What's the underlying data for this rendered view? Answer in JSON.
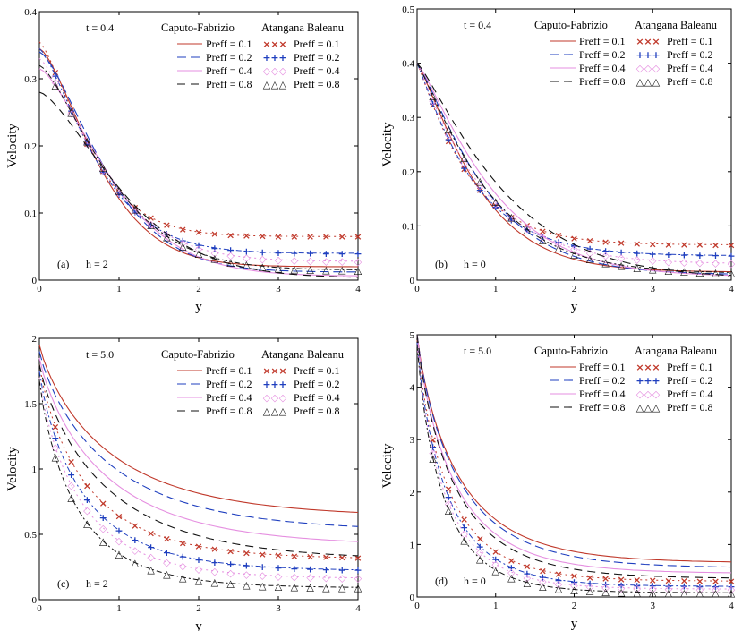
{
  "colors": {
    "p01": "#c0392b",
    "p02": "#1f3fbf",
    "p04": "#e58fe0",
    "p08": "#111111"
  },
  "legend": {
    "cf_header": "Caputo-Fabrizio",
    "ab_header": "Atangana Baleanu",
    "entries": [
      {
        "key": "p01",
        "label": "Preff = 0.1"
      },
      {
        "key": "p02",
        "label": "Preff = 0.2"
      },
      {
        "key": "p04",
        "label": "Preff = 0.4"
      },
      {
        "key": "p08",
        "label": "Preff = 0.8"
      }
    ]
  },
  "chart_data": [
    {
      "type": "line",
      "panel": "(a)",
      "time_label": "t = 0.4",
      "h_label": "h = 2",
      "xlabel": "y",
      "ylabel": "Velocity",
      "xlim": [
        0,
        4
      ],
      "ylim": [
        0,
        0.4
      ],
      "xticks": [
        0,
        1,
        2,
        3,
        4
      ],
      "yticks": [
        0,
        0.1,
        0.2,
        0.3,
        0.4
      ],
      "cf": {
        "y0": [
          0.345,
          0.34,
          0.315,
          0.28
        ],
        "yend": [
          0.02,
          0.012,
          0.006,
          0.003
        ],
        "k": [
          0.9,
          1.0,
          1.1,
          1.25
        ],
        "p": [
          1.45,
          1.45,
          1.45,
          1.45
        ]
      },
      "ab": {
        "y0": [
          0.355,
          0.345,
          0.33,
          0.32
        ],
        "yend": [
          0.065,
          0.04,
          0.028,
          0.015
        ],
        "k": [
          0.75,
          0.85,
          0.95,
          1.05
        ],
        "p": [
          1.35,
          1.35,
          1.35,
          1.4
        ]
      }
    },
    {
      "type": "line",
      "panel": "(b)",
      "time_label": "t = 0.4",
      "h_label": "h = 0",
      "xlabel": "y",
      "ylabel": "Velocity",
      "xlim": [
        0,
        4
      ],
      "ylim": [
        0,
        0.5
      ],
      "xticks": [
        0,
        1,
        2,
        3,
        4
      ],
      "yticks": [
        0,
        0.1,
        0.2,
        0.3,
        0.4,
        0.5
      ],
      "cf": {
        "y0": [
          0.4,
          0.4,
          0.4,
          0.4
        ],
        "yend": [
          0.015,
          0.01,
          0.006,
          0.003
        ],
        "k": [
          0.85,
          0.95,
          1.05,
          1.2
        ],
        "p": [
          1.2,
          1.2,
          1.2,
          1.2
        ]
      },
      "ab": {
        "y0": [
          0.4,
          0.4,
          0.4,
          0.4
        ],
        "yend": [
          0.065,
          0.045,
          0.03,
          0.012
        ],
        "k": [
          0.68,
          0.75,
          0.85,
          0.95
        ],
        "p": [
          1.1,
          1.1,
          1.1,
          1.15
        ]
      }
    },
    {
      "type": "line",
      "panel": "(c)",
      "time_label": "t = 5.0",
      "h_label": "h = 2",
      "xlabel": "y",
      "ylabel": "Velocity",
      "xlim": [
        0,
        4
      ],
      "ylim": [
        0,
        2
      ],
      "xticks": [
        0,
        1,
        2,
        3,
        4
      ],
      "yticks": [
        0,
        0.5,
        1,
        1.5,
        2
      ],
      "cf": {
        "y0": [
          1.95,
          1.9,
          1.85,
          1.8
        ],
        "yend": [
          0.63,
          0.52,
          0.41,
          0.3
        ],
        "k": [
          0.9,
          0.9,
          0.85,
          0.85
        ],
        "p": [
          0.85,
          0.85,
          0.85,
          0.85
        ]
      },
      "ab": {
        "y0": [
          1.8,
          1.75,
          1.7,
          1.68
        ],
        "yend": [
          0.31,
          0.22,
          0.16,
          0.09
        ],
        "k": [
          0.62,
          0.58,
          0.55,
          0.5
        ],
        "p": [
          0.85,
          0.85,
          0.85,
          0.85
        ]
      }
    },
    {
      "type": "line",
      "panel": "(d)",
      "time_label": "t = 5.0",
      "h_label": "h = 0",
      "xlabel": "y",
      "ylabel": "Velocity",
      "xlim": [
        0,
        4
      ],
      "ylim": [
        0,
        5
      ],
      "xticks": [
        0,
        1,
        2,
        3,
        4
      ],
      "yticks": [
        0,
        1,
        2,
        3,
        4,
        5
      ],
      "cf": {
        "y0": [
          5,
          5,
          5,
          5
        ],
        "yend": [
          0.65,
          0.55,
          0.45,
          0.35
        ],
        "k": [
          0.55,
          0.55,
          0.5,
          0.5
        ],
        "p": [
          0.85,
          0.85,
          0.85,
          0.85
        ]
      },
      "ab": {
        "y0": [
          4.9,
          4.85,
          4.8,
          4.8
        ],
        "yend": [
          0.3,
          0.2,
          0.15,
          0.08
        ],
        "k": [
          0.42,
          0.4,
          0.38,
          0.36
        ],
        "p": [
          0.85,
          0.85,
          0.85,
          0.85
        ]
      }
    }
  ]
}
